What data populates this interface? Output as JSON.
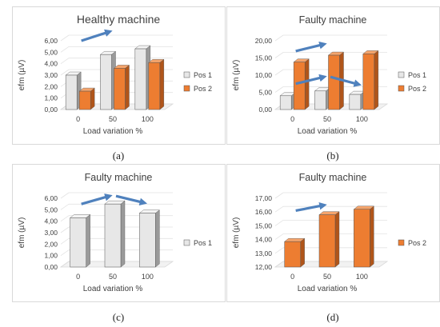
{
  "colors": {
    "pos1_face": "#e7e7e7",
    "pos1_side": "#9a9a9a",
    "pos1_top": "#f4f4f4",
    "pos2_face": "#ed7d31",
    "pos2_side": "#b0551a",
    "pos2_top": "#f4a46c",
    "arrow": "#4f81bd",
    "axis": "#595959",
    "floor": "#d9d9d9"
  },
  "captions": [
    "(a)",
    "(b)",
    "(c)",
    "(d)"
  ],
  "chart_data": [
    {
      "type": "bar",
      "title": "Healthy machine",
      "xlabel": "Load variation  %",
      "ylabel": "efm (µV)",
      "categories": [
        "0",
        "50",
        "100"
      ],
      "yticks": [
        "0,00",
        "1,00",
        "2,00",
        "3,00",
        "4,00",
        "5,00",
        "6,00"
      ],
      "ylim": [
        0,
        6
      ],
      "series": [
        {
          "name": "Pos 1",
          "values": [
            3.0,
            4.8,
            5.3
          ]
        },
        {
          "name": "Pos 2",
          "values": [
            1.6,
            3.6,
            4.1
          ]
        }
      ],
      "legend_position": "right",
      "arrows": [
        {
          "from_category": 0,
          "to_category": 1,
          "from_value": 6.0,
          "to_value": 6.8
        }
      ]
    },
    {
      "type": "bar",
      "title": "Faulty machine",
      "xlabel": "Load variation  %",
      "ylabel": "efm (µV)",
      "categories": [
        "0",
        "50",
        "100"
      ],
      "yticks": [
        "0,00",
        "5,00",
        "10,00",
        "15,00",
        "20,00"
      ],
      "ylim": [
        0,
        20
      ],
      "series": [
        {
          "name": "Pos 1",
          "values": [
            4.0,
            5.4,
            4.4
          ]
        },
        {
          "name": "Pos 2",
          "values": [
            13.8,
            15.8,
            16.2
          ]
        }
      ],
      "legend_position": "right",
      "arrows": [
        {
          "from_category": 0,
          "to_category": 1,
          "from_value": 17.0,
          "to_value": 19.0
        },
        {
          "from_category": 0,
          "to_category": 1,
          "from_value": 7.5,
          "to_value": 9.5
        },
        {
          "from_category": 1,
          "to_category": 2,
          "from_value": 9.5,
          "to_value": 7.3
        }
      ]
    },
    {
      "type": "bar",
      "title": "Faulty machine",
      "xlabel": "Load variation  %",
      "ylabel": "efm (µV)",
      "categories": [
        "0",
        "50",
        "100"
      ],
      "yticks": [
        "0,00",
        "1,00",
        "2,00",
        "3,00",
        "4,00",
        "5,00",
        "6,00"
      ],
      "ylim": [
        0,
        6
      ],
      "series": [
        {
          "name": "Pos 1",
          "values": [
            4.3,
            5.5,
            4.7
          ]
        }
      ],
      "legend_position": "right",
      "arrows": [
        {
          "from_category": 0,
          "to_category": 1,
          "from_value": 5.5,
          "to_value": 6.2
        },
        {
          "from_category": 1,
          "to_category": 2,
          "from_value": 6.2,
          "to_value": 5.6
        }
      ]
    },
    {
      "type": "bar",
      "title": "Faulty machine",
      "xlabel": "Load variation  %",
      "ylabel": "efm (µV)",
      "categories": [
        "0",
        "50",
        "100"
      ],
      "yticks": [
        "12,00",
        "13,00",
        "14,00",
        "15,00",
        "16,00",
        "17,00"
      ],
      "ylim": [
        12,
        17
      ],
      "series": [
        {
          "name": "Pos 2",
          "values": [
            13.85,
            15.8,
            16.2
          ]
        }
      ],
      "legend_position": "right",
      "arrows": [
        {
          "from_category": 0,
          "to_category": 1,
          "from_value": 16.1,
          "to_value": 16.5
        }
      ]
    }
  ]
}
